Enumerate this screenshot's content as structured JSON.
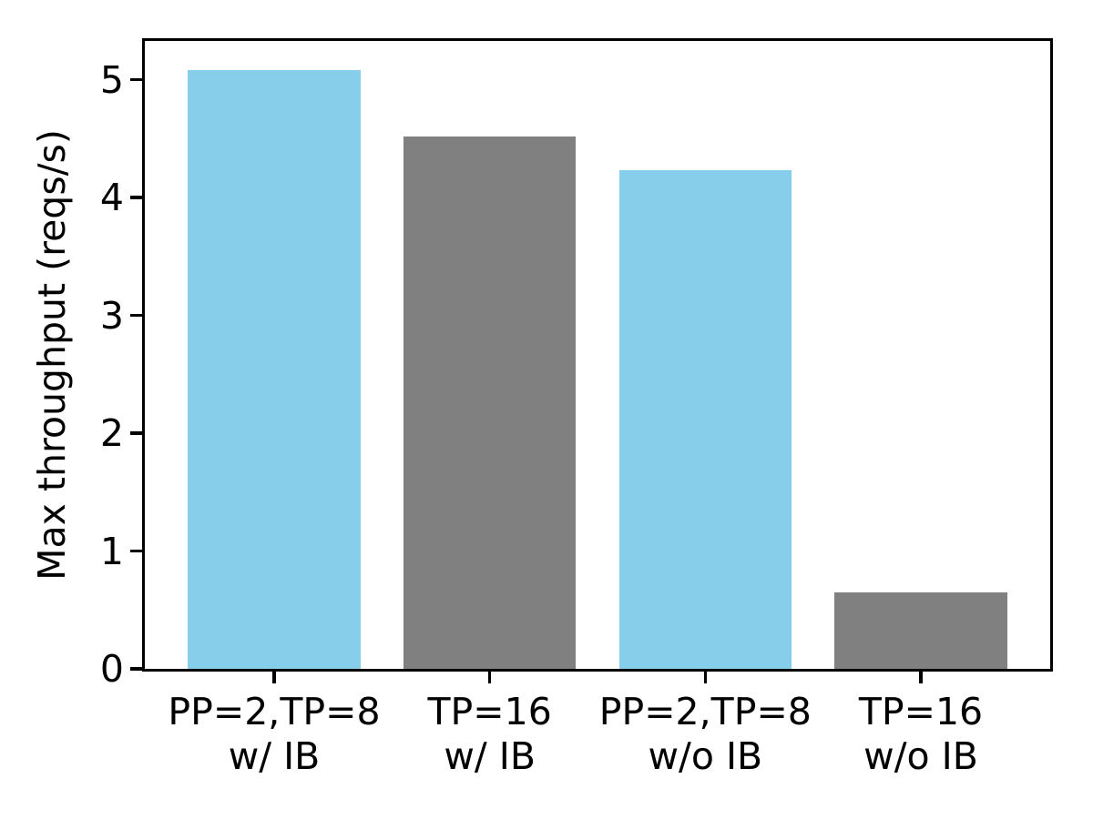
{
  "chart_data": {
    "type": "bar",
    "title": "",
    "xlabel": "",
    "ylabel": "Max throughput (reqs/s)",
    "categories": [
      "PP=2,TP=8\nw/ IB",
      "TP=16\nw/ IB",
      "PP=2,TP=8\nw/o IB",
      "TP=16\nw/o IB"
    ],
    "values": [
      5.08,
      4.52,
      4.23,
      0.65
    ],
    "bar_colors": [
      "#87CEEB",
      "#808080",
      "#87CEEB",
      "#808080"
    ],
    "ylim": [
      0,
      5.33
    ],
    "yticks": [
      0,
      1,
      2,
      3,
      4,
      5
    ],
    "bar_width_fraction": 0.8,
    "x_edge_padding_units": 0.6,
    "grid": false,
    "legend_position": "none"
  },
  "colors": {
    "spine": "#000000",
    "text": "#000000",
    "background": "#ffffff",
    "bar_blue": "#87CEEB",
    "bar_gray": "#808080"
  }
}
